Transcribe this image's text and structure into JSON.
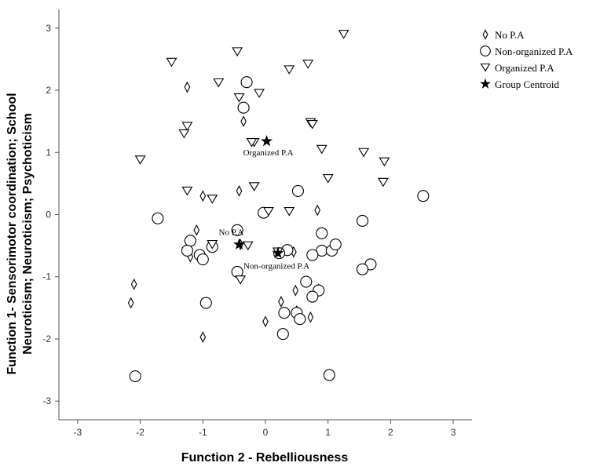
{
  "chart_data": {
    "type": "scatter",
    "title": "",
    "xlabel": "Function 2 - Rebelliousness",
    "ylabel_lines": [
      "Function 1- Sensorimotor coordination; School",
      "Neuroticism; Neuroticism; Psychoticism"
    ],
    "xlim": [
      -3.3,
      3.3
    ],
    "ylim": [
      -3.3,
      3.3
    ],
    "x_ticks": [
      -3,
      -2,
      -1,
      0,
      1,
      2,
      3
    ],
    "y_ticks": [
      -3,
      -2,
      -1,
      0,
      1,
      2,
      3
    ],
    "grid": false,
    "legend_position": "top-right",
    "legend": [
      {
        "label": "No P.A",
        "marker": "diamond"
      },
      {
        "label": "Non-organized P.A",
        "marker": "circle"
      },
      {
        "label": "Organized P.A",
        "marker": "triangle-down"
      },
      {
        "label": "Group Centroid",
        "marker": "star"
      }
    ],
    "series": [
      {
        "name": "No P.A",
        "marker": "diamond",
        "points": [
          [
            -1.25,
            2.05
          ],
          [
            -0.35,
            1.5
          ],
          [
            -1.0,
            0.3
          ],
          [
            -0.42,
            0.38
          ],
          [
            -1.1,
            -0.25
          ],
          [
            0.83,
            0.07
          ],
          [
            -2.1,
            -1.12
          ],
          [
            -2.15,
            -1.42
          ],
          [
            -1.0,
            -1.97
          ],
          [
            0.0,
            -1.72
          ],
          [
            0.25,
            -1.4
          ],
          [
            0.5,
            -1.55
          ],
          [
            0.72,
            -1.65
          ],
          [
            0.48,
            -1.22
          ],
          [
            0.45,
            -0.6
          ],
          [
            -0.4,
            -0.48
          ],
          [
            -1.2,
            -0.68
          ],
          [
            0.85,
            -1.2
          ]
        ]
      },
      {
        "name": "Non-organized P.A",
        "marker": "circle",
        "points": [
          [
            -0.3,
            2.13
          ],
          [
            -0.35,
            1.72
          ],
          [
            -1.72,
            -0.06
          ],
          [
            -0.03,
            0.03
          ],
          [
            0.52,
            0.38
          ],
          [
            2.52,
            0.3
          ],
          [
            1.55,
            -0.1
          ],
          [
            -1.2,
            -0.42
          ],
          [
            -1.25,
            -0.58
          ],
          [
            -1.05,
            -0.65
          ],
          [
            -1.0,
            -0.72
          ],
          [
            -0.85,
            -0.52
          ],
          [
            -0.45,
            -0.25
          ],
          [
            -0.45,
            -0.92
          ],
          [
            0.35,
            -0.57
          ],
          [
            0.22,
            -0.62
          ],
          [
            0.9,
            -0.3
          ],
          [
            0.9,
            -0.58
          ],
          [
            1.06,
            -0.58
          ],
          [
            1.12,
            -0.48
          ],
          [
            0.75,
            -0.65
          ],
          [
            1.68,
            -0.8
          ],
          [
            1.55,
            -0.88
          ],
          [
            0.65,
            -1.08
          ],
          [
            0.85,
            -1.22
          ],
          [
            0.75,
            -1.32
          ],
          [
            0.5,
            -1.58
          ],
          [
            0.55,
            -1.68
          ],
          [
            0.3,
            -1.58
          ],
          [
            0.28,
            -1.92
          ],
          [
            -0.95,
            -1.42
          ],
          [
            -2.08,
            -2.6
          ],
          [
            1.02,
            -2.58
          ]
        ]
      },
      {
        "name": "Organized P.A",
        "marker": "triangle-down",
        "points": [
          [
            1.25,
            2.9
          ],
          [
            -1.5,
            2.45
          ],
          [
            -0.45,
            2.62
          ],
          [
            0.38,
            2.33
          ],
          [
            0.68,
            2.42
          ],
          [
            -0.75,
            2.12
          ],
          [
            -0.1,
            1.95
          ],
          [
            -0.42,
            1.88
          ],
          [
            -1.25,
            1.42
          ],
          [
            -1.3,
            1.3
          ],
          [
            0.72,
            1.48
          ],
          [
            0.75,
            1.45
          ],
          [
            0.9,
            1.05
          ],
          [
            -0.18,
            1.16
          ],
          [
            -0.22,
            1.16
          ],
          [
            -2.0,
            0.88
          ],
          [
            1.57,
            1.0
          ],
          [
            1.9,
            0.85
          ],
          [
            1.0,
            0.58
          ],
          [
            1.88,
            0.52
          ],
          [
            -0.18,
            0.45
          ],
          [
            -1.25,
            0.38
          ],
          [
            -0.85,
            0.25
          ],
          [
            0.05,
            0.05
          ],
          [
            0.38,
            0.05
          ],
          [
            -0.28,
            -0.5
          ],
          [
            0.2,
            -0.6
          ],
          [
            -0.85,
            -0.48
          ],
          [
            -0.4,
            -1.05
          ]
        ]
      }
    ],
    "centroids": [
      {
        "name": "Organized P.A",
        "x": 0.02,
        "y": 1.18
      },
      {
        "name": "No P.A",
        "x": -0.42,
        "y": -0.48
      },
      {
        "name": "Non-organized P.A",
        "x": 0.2,
        "y": -0.62
      }
    ],
    "centroid_labels": [
      "Organized P.A",
      "No P.A",
      "Non-organized P.A"
    ]
  }
}
